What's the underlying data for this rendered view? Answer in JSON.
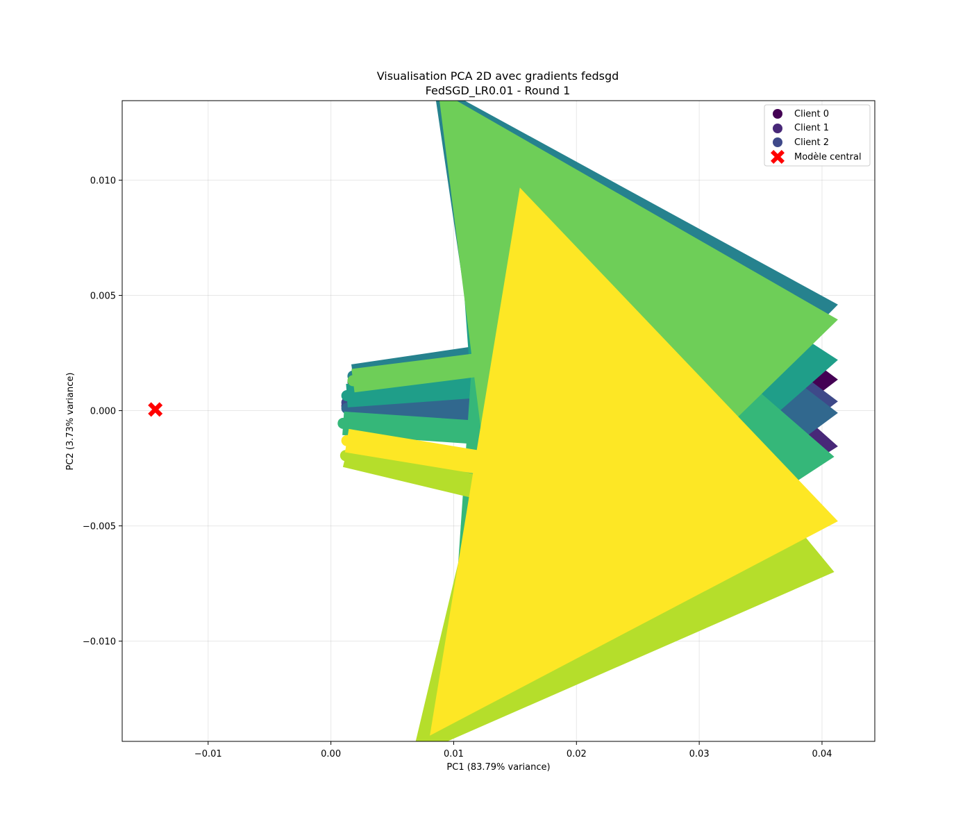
{
  "chart_data": {
    "type": "scatter",
    "title": "Visualisation PCA 2D avec gradients fedsgd",
    "subtitle": "FedSGD_LR0.01 - Round 1",
    "xlabel": "PC1 (83.79% variance)",
    "ylabel": "PC2 (3.73% variance)",
    "xlim": [
      -0.017,
      0.0443
    ],
    "ylim": [
      -0.01435,
      0.01345
    ],
    "xticks": [
      -0.01,
      0.0,
      0.01,
      0.02,
      0.03,
      0.04
    ],
    "xtick_labels": [
      "−0.01",
      "0.00",
      "0.01",
      "0.02",
      "0.03",
      "0.04"
    ],
    "yticks": [
      -0.01,
      -0.005,
      0.0,
      0.005,
      0.01
    ],
    "ytick_labels": [
      "−0.010",
      "−0.005",
      "0.000",
      "0.005",
      "0.010"
    ],
    "grid": true,
    "legend_position": "top-right",
    "legend": [
      {
        "label": "Client 0",
        "marker": "circle",
        "color": "#440154"
      },
      {
        "label": "Client 1",
        "marker": "circle",
        "color": "#482878"
      },
      {
        "label": "Client 2",
        "marker": "circle",
        "color": "#3e4989"
      },
      {
        "label": "Modèle central",
        "marker": "x",
        "color": "#ff0000"
      }
    ],
    "central_model": {
      "x": -0.0143,
      "y": 5e-05,
      "color": "#ff0000"
    },
    "series": [
      {
        "color": "#440154",
        "start": [
          0.0018,
          0.00125
        ],
        "end": [
          0.0413,
          0.00135
        ]
      },
      {
        "color": "#482878",
        "start": [
          0.0013,
          0.0002
        ],
        "end": [
          0.0413,
          -0.00155
        ]
      },
      {
        "color": "#3e4989",
        "start": [
          0.0013,
          0.00035
        ],
        "end": [
          0.0413,
          0.0004
        ]
      },
      {
        "color": "#31688e",
        "start": [
          0.0013,
          0.0001
        ],
        "end": [
          0.0413,
          -0.0001
        ]
      },
      {
        "color": "#26828e",
        "start": [
          0.0018,
          0.0015
        ],
        "end": [
          0.0413,
          0.0046
        ]
      },
      {
        "color": "#1f9e89",
        "start": [
          0.0013,
          0.00065
        ],
        "end": [
          0.0413,
          0.0022
        ]
      },
      {
        "color": "#35b779",
        "start": [
          0.001,
          -0.00055
        ],
        "end": [
          0.041,
          -0.002
        ]
      },
      {
        "color": "#b5de2b",
        "start": [
          0.0012,
          -0.00195
        ],
        "end": [
          0.041,
          -0.007
        ]
      },
      {
        "color": "#6ece58",
        "start": [
          0.0018,
          0.0013
        ],
        "end": [
          0.0413,
          0.00395
        ]
      },
      {
        "color": "#fde725",
        "start": [
          0.0013,
          -0.0013
        ],
        "end": [
          0.0413,
          -0.0048
        ]
      }
    ]
  }
}
